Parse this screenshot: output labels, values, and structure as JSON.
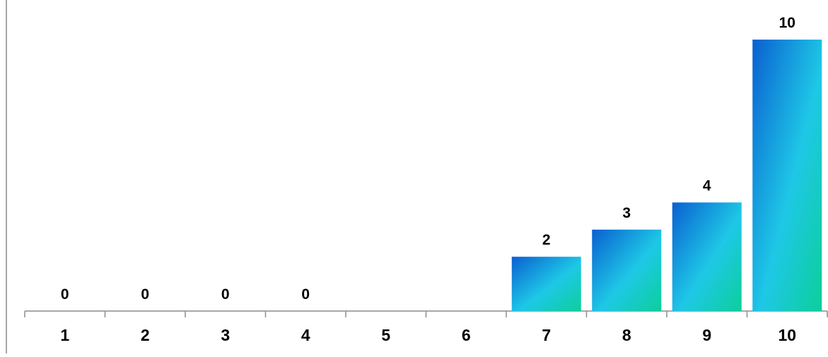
{
  "chart_data": {
    "type": "bar",
    "categories": [
      "1",
      "2",
      "3",
      "4",
      "5",
      "6",
      "7",
      "8",
      "9",
      "10"
    ],
    "values": [
      0,
      0,
      0,
      0,
      null,
      null,
      2,
      3,
      4,
      10
    ],
    "data_labels": [
      "0",
      "0",
      "0",
      "0",
      "",
      "",
      "2",
      "3",
      "4",
      "10"
    ],
    "title": "",
    "xlabel": "",
    "ylabel": "",
    "ylim": [
      0,
      10
    ],
    "grid": false,
    "legend": "none",
    "colors": {
      "bar_gradient_start": "#0a5fd1",
      "bar_gradient_mid": "#1ec8e6",
      "bar_gradient_end": "#0ccf9a",
      "axis": "#8c8c8c",
      "text": "#000000"
    }
  }
}
